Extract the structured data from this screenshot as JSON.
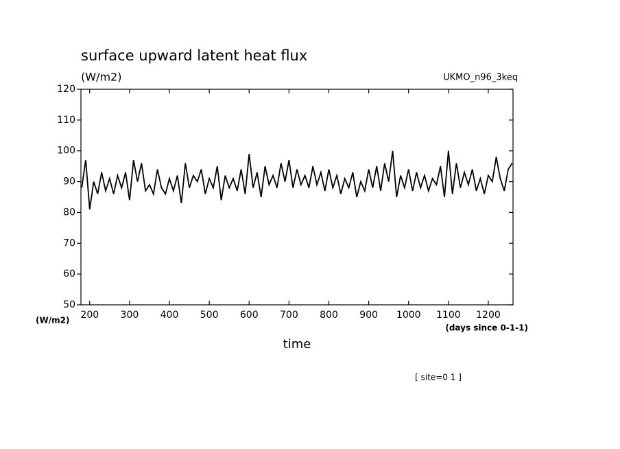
{
  "chart_data": {
    "type": "line",
    "title": "surface upward latent heat flux",
    "subtitle": "(W/m2)",
    "annotation": "UKMO_n96_3keq",
    "y_unit_label": "(W/m2)",
    "x_unit_label": "(days since 0-1-1)",
    "xlabel": "time",
    "footer": "[ site=0 1 ]",
    "x": [
      180,
      190,
      200,
      210,
      220,
      230,
      240,
      250,
      260,
      270,
      280,
      290,
      300,
      310,
      320,
      330,
      340,
      350,
      360,
      370,
      380,
      390,
      400,
      410,
      420,
      430,
      440,
      450,
      460,
      470,
      480,
      490,
      500,
      510,
      520,
      530,
      540,
      550,
      560,
      570,
      580,
      590,
      600,
      610,
      620,
      630,
      640,
      650,
      660,
      670,
      680,
      690,
      700,
      710,
      720,
      730,
      740,
      750,
      760,
      770,
      780,
      790,
      800,
      810,
      820,
      830,
      840,
      850,
      860,
      870,
      880,
      890,
      900,
      910,
      920,
      930,
      940,
      950,
      960,
      970,
      980,
      990,
      1000,
      1010,
      1020,
      1030,
      1040,
      1050,
      1060,
      1070,
      1080,
      1090,
      1100,
      1110,
      1120,
      1130,
      1140,
      1150,
      1160,
      1170,
      1180,
      1190,
      1200,
      1210,
      1220,
      1230,
      1240,
      1250,
      1260
    ],
    "series": [
      {
        "color": "#000000",
        "values": [
          88,
          97,
          81,
          90,
          86,
          93,
          87,
          91,
          86,
          92,
          88,
          93,
          84,
          97,
          90,
          96,
          87,
          89,
          86,
          94,
          88,
          86,
          91,
          87,
          92,
          83,
          96,
          88,
          92,
          90,
          94,
          86,
          91,
          88,
          95,
          84,
          92,
          88,
          91,
          87,
          94,
          86,
          99,
          88,
          93,
          85,
          95,
          89,
          92,
          88,
          96,
          90,
          97,
          88,
          94,
          89,
          92,
          88,
          95,
          89,
          93,
          87,
          94,
          88,
          92,
          86,
          91,
          88,
          93,
          85,
          90,
          87,
          94,
          88,
          95,
          87,
          96,
          90,
          100,
          85,
          92,
          88,
          94,
          87,
          93,
          88,
          92,
          87,
          91,
          89,
          95,
          85,
          100,
          86,
          96,
          88,
          93,
          89,
          94,
          87,
          91,
          86,
          92,
          90,
          98,
          91,
          87,
          94,
          96
        ]
      }
    ],
    "xlim": [
      178,
      1262
    ],
    "ylim": [
      50,
      120
    ],
    "xticks": [
      200,
      300,
      400,
      500,
      600,
      700,
      800,
      900,
      1000,
      1100,
      1200
    ],
    "yticks": [
      50,
      60,
      70,
      80,
      90,
      100,
      110,
      120
    ]
  }
}
